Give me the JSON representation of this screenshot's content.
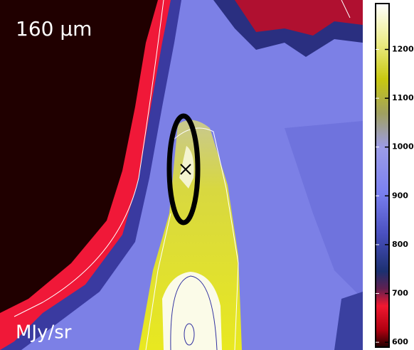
{
  "chart_data": {
    "type": "image-map",
    "title": "160 μm",
    "colorbar": {
      "label": "MJy/sr",
      "lim": [
        590,
        1294
      ],
      "ticks": [
        600,
        700,
        800,
        900,
        1000,
        1100,
        1200
      ]
    }
  }
}
